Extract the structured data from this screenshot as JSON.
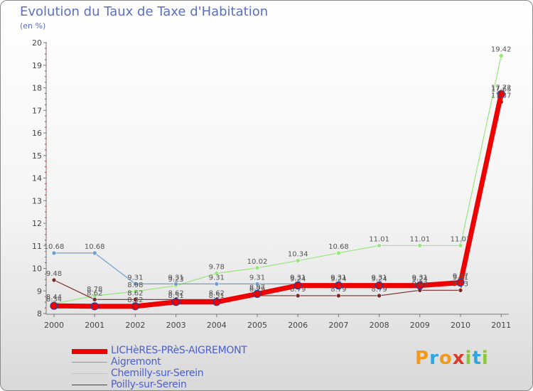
{
  "title": "Evolution du Taux de Taxe d'Habitation",
  "subtitle": "(en %)",
  "logo_text": "Proxiti",
  "chart_data": {
    "type": "line",
    "x": [
      "2000",
      "2001",
      "2002",
      "2003",
      "2004",
      "2005",
      "2006",
      "2007",
      "2008",
      "2009",
      "2010",
      "2011"
    ],
    "ylim": [
      8,
      20
    ],
    "yticks": [
      8,
      9,
      10,
      11,
      12,
      13,
      14,
      15,
      16,
      17,
      18,
      19,
      20
    ],
    "grid": false,
    "legend_position": "bottom",
    "series": [
      {
        "name": "LICHèRES-PRèS-AIGREMONT",
        "color": "#ee0000",
        "values": [
          8.34,
          8.32,
          8.32,
          8.51,
          8.51,
          8.87,
          9.24,
          9.24,
          9.24,
          9.24,
          9.37,
          17.72
        ],
        "value_labels": [
          "8.34",
          "",
          "8.32",
          "8.51",
          "8.51",
          "8.87",
          "9.24",
          "9.24",
          "9.24",
          "9.24",
          "9.37",
          "17.72"
        ]
      },
      {
        "name": "Aigremont",
        "color": "#6f9fd0",
        "values": [
          10.68,
          10.68,
          9.31,
          9.31,
          9.31,
          9.31,
          9.31,
          9.31,
          9.31,
          9.31,
          9.31,
          17.65
        ],
        "value_labels": [
          "10.68",
          "10.68",
          "9.31",
          "9.31",
          "9.31",
          "9.31",
          "9.31",
          "9.31",
          "9.31",
          "9.31",
          "9.31",
          "17.65"
        ]
      },
      {
        "name": "Chemilly-sur-Serein",
        "color": "#99e67f",
        "values": [
          8.44,
          8.78,
          8.98,
          9.23,
          9.78,
          10.02,
          10.34,
          10.68,
          11.01,
          11.01,
          11.01,
          19.42
        ],
        "value_labels": [
          "8.44",
          "8.78",
          "8.98",
          "9.23",
          "9.78",
          "10.02",
          "10.34",
          "10.68",
          "11.01",
          "11.01",
          "11.01",
          "19.42"
        ]
      },
      {
        "name": "Poilly-sur-Serein",
        "color": "#7a2a2a",
        "values": [
          9.48,
          8.62,
          8.62,
          8.62,
          8.62,
          8.79,
          8.79,
          8.79,
          8.79,
          9.03,
          9.03,
          17.37
        ],
        "value_labels": [
          "9.48",
          "8.62",
          "8.62",
          "8.62",
          "8.62",
          "8.79",
          "8.79",
          "8.79",
          "8.79",
          "9.03",
          "9.03",
          "17.37"
        ]
      }
    ]
  }
}
